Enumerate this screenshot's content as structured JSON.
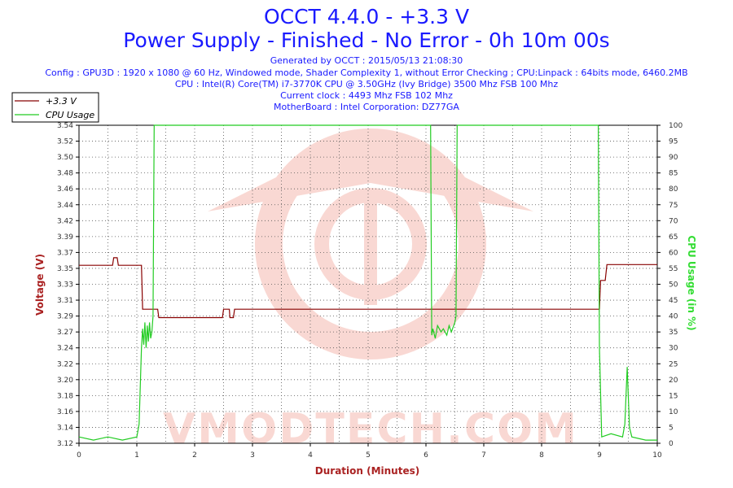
{
  "header": {
    "title": "OCCT 4.4.0 - +3.3 V",
    "subtitle": "Power Supply - Finished - No Error - 0h 10m 00s",
    "generated": "Generated by OCCT : 2015/05/13 21:08:30",
    "config": "Config : GPU3D : 1920 x 1080 @ 60 Hz, Windowed mode, Shader Complexity 1, without Error Checking ; CPU:Linpack : 64bits mode, 6460.2MB",
    "cpu": "CPU : Intel(R) Core(TM) i7-3770K CPU @ 3.50GHz (Ivy Bridge) 3500 Mhz FSB 100 Mhz",
    "clock": "Current clock : 4493 Mhz FSB 102 Mhz",
    "motherboard": "MotherBoard : Intel Corporation: DZ77GA"
  },
  "watermark": "VMODTECH.COM",
  "chart_data": {
    "type": "line",
    "xlabel": "Duration (Minutes)",
    "ylabel": "Voltage (V)",
    "y2label": "CPU Usage (in %)",
    "xlim": [
      0,
      10
    ],
    "ylim": [
      3.12,
      3.54
    ],
    "y2lim": [
      0,
      100
    ],
    "grid": true,
    "legend_position": "top-left",
    "x_ticks": [
      "0",
      "1",
      "2",
      "3",
      "4",
      "5",
      "6",
      "7",
      "8",
      "9",
      "10"
    ],
    "y_ticks": [
      "3.12",
      "3.14",
      "3.16",
      "3.18",
      "3.20",
      "3.22",
      "3.24",
      "3.27",
      "3.29",
      "3.31",
      "3.33",
      "3.35",
      "3.37",
      "3.39",
      "3.42",
      "3.44",
      "3.46",
      "3.48",
      "3.50",
      "3.52",
      "3.54"
    ],
    "y2_ticks": [
      "0",
      "5",
      "10",
      "15",
      "20",
      "25",
      "30",
      "35",
      "40",
      "45",
      "50",
      "55",
      "60",
      "65",
      "70",
      "75",
      "80",
      "85",
      "90",
      "95",
      "100"
    ],
    "series": [
      {
        "name": "+3.3 V",
        "axis": "left",
        "color": "#880000",
        "points": [
          [
            0,
            3.355
          ],
          [
            0.58,
            3.355
          ],
          [
            0.6,
            3.365
          ],
          [
            0.66,
            3.365
          ],
          [
            0.68,
            3.355
          ],
          [
            1.08,
            3.355
          ],
          [
            1.1,
            3.297
          ],
          [
            1.36,
            3.297
          ],
          [
            1.38,
            3.286
          ],
          [
            2.48,
            3.286
          ],
          [
            2.5,
            3.297
          ],
          [
            2.6,
            3.297
          ],
          [
            2.61,
            3.286
          ],
          [
            2.67,
            3.286
          ],
          [
            2.69,
            3.297
          ],
          [
            9.0,
            3.297
          ],
          [
            9.02,
            3.335
          ],
          [
            9.1,
            3.335
          ],
          [
            9.13,
            3.356
          ],
          [
            10.0,
            3.356
          ]
        ]
      },
      {
        "name": "CPU Usage",
        "axis": "right",
        "color": "#22cc22",
        "points": [
          [
            0,
            2
          ],
          [
            0.25,
            1
          ],
          [
            0.5,
            2
          ],
          [
            0.75,
            1
          ],
          [
            1.0,
            2
          ],
          [
            1.04,
            6
          ],
          [
            1.08,
            30
          ],
          [
            1.1,
            36
          ],
          [
            1.12,
            31
          ],
          [
            1.14,
            38
          ],
          [
            1.16,
            30
          ],
          [
            1.18,
            37
          ],
          [
            1.2,
            32
          ],
          [
            1.22,
            38
          ],
          [
            1.24,
            33
          ],
          [
            1.26,
            35
          ],
          [
            1.28,
            40
          ],
          [
            1.3,
            100
          ],
          [
            6.08,
            100
          ],
          [
            6.1,
            34
          ],
          [
            6.12,
            36
          ],
          [
            6.16,
            33
          ],
          [
            6.2,
            37
          ],
          [
            6.26,
            35
          ],
          [
            6.3,
            36
          ],
          [
            6.36,
            34
          ],
          [
            6.4,
            37
          ],
          [
            6.44,
            35
          ],
          [
            6.5,
            38
          ],
          [
            6.52,
            40
          ],
          [
            6.54,
            100
          ],
          [
            8.98,
            100
          ],
          [
            9.0,
            30
          ],
          [
            9.04,
            2
          ],
          [
            9.2,
            3
          ],
          [
            9.4,
            2
          ],
          [
            9.44,
            6
          ],
          [
            9.48,
            24
          ],
          [
            9.52,
            5
          ],
          [
            9.56,
            2
          ],
          [
            9.8,
            1
          ],
          [
            10.0,
            1
          ]
        ]
      }
    ]
  }
}
